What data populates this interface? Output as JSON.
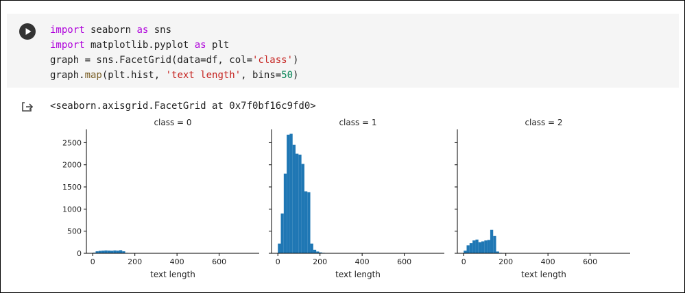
{
  "code_cell": {
    "lines": [
      [
        {
          "t": "import",
          "c": "kw"
        },
        {
          "t": " seaborn ",
          "c": ""
        },
        {
          "t": "as",
          "c": "kw"
        },
        {
          "t": " sns",
          "c": ""
        }
      ],
      [
        {
          "t": "import",
          "c": "kw"
        },
        {
          "t": " matplotlib.pyplot ",
          "c": ""
        },
        {
          "t": "as",
          "c": "kw"
        },
        {
          "t": " plt",
          "c": ""
        }
      ],
      [
        {
          "t": "graph = sns.FacetGrid(data=df, col=",
          "c": ""
        },
        {
          "t": "'class'",
          "c": "str"
        },
        {
          "t": ")",
          "c": ""
        }
      ],
      [
        {
          "t": "graph.",
          "c": ""
        },
        {
          "t": "map",
          "c": "fn"
        },
        {
          "t": "(plt.hist, ",
          "c": ""
        },
        {
          "t": "'text length'",
          "c": "str"
        },
        {
          "t": ", bins=",
          "c": ""
        },
        {
          "t": "50",
          "c": "num"
        },
        {
          "t": ")",
          "c": ""
        }
      ]
    ]
  },
  "output": {
    "text": "<seaborn.axisgrid.FacetGrid at 0x7f0bf16c9fd0>"
  },
  "chart_data": [
    {
      "type": "bar",
      "title": "class = 0",
      "xlabel": "text length",
      "ylabel": "",
      "xlim": [
        -30,
        790
      ],
      "ylim": [
        0,
        2800
      ],
      "xticks": [
        0,
        200,
        400,
        600
      ],
      "yticks": [
        0,
        500,
        1000,
        1500,
        2000,
        2500
      ],
      "bin_width": 14,
      "bins": [
        {
          "x": 7,
          "value": 15
        },
        {
          "x": 21,
          "value": 45
        },
        {
          "x": 35,
          "value": 55
        },
        {
          "x": 49,
          "value": 60
        },
        {
          "x": 63,
          "value": 65
        },
        {
          "x": 77,
          "value": 62
        },
        {
          "x": 91,
          "value": 58
        },
        {
          "x": 105,
          "value": 65
        },
        {
          "x": 119,
          "value": 60
        },
        {
          "x": 133,
          "value": 70
        },
        {
          "x": 147,
          "value": 45
        },
        {
          "x": 161,
          "value": 10
        }
      ]
    },
    {
      "type": "bar",
      "title": "class = 1",
      "xlabel": "text length",
      "ylabel": "",
      "xlim": [
        -30,
        790
      ],
      "ylim": [
        0,
        2800
      ],
      "xticks": [
        0,
        200,
        400,
        600
      ],
      "yticks": [
        0,
        500,
        1000,
        1500,
        2000,
        2500
      ],
      "bin_width": 14,
      "bins": [
        {
          "x": 7,
          "value": 220
        },
        {
          "x": 21,
          "value": 900
        },
        {
          "x": 35,
          "value": 1800
        },
        {
          "x": 49,
          "value": 2680
        },
        {
          "x": 63,
          "value": 2700
        },
        {
          "x": 77,
          "value": 2450
        },
        {
          "x": 91,
          "value": 2250
        },
        {
          "x": 105,
          "value": 2230
        },
        {
          "x": 119,
          "value": 2020
        },
        {
          "x": 133,
          "value": 1400
        },
        {
          "x": 147,
          "value": 1380
        },
        {
          "x": 161,
          "value": 220
        },
        {
          "x": 175,
          "value": 80
        },
        {
          "x": 189,
          "value": 40
        },
        {
          "x": 203,
          "value": 20
        },
        {
          "x": 217,
          "value": 10
        },
        {
          "x": 231,
          "value": 5
        }
      ]
    },
    {
      "type": "bar",
      "title": "class = 2",
      "xlabel": "text length",
      "ylabel": "",
      "xlim": [
        -30,
        790
      ],
      "ylim": [
        0,
        2800
      ],
      "xticks": [
        0,
        200,
        400,
        600
      ],
      "yticks": [
        0,
        500,
        1000,
        1500,
        2000,
        2500
      ],
      "bin_width": 14,
      "bins": [
        {
          "x": 7,
          "value": 60
        },
        {
          "x": 21,
          "value": 180
        },
        {
          "x": 35,
          "value": 230
        },
        {
          "x": 49,
          "value": 290
        },
        {
          "x": 63,
          "value": 310
        },
        {
          "x": 77,
          "value": 250
        },
        {
          "x": 91,
          "value": 270
        },
        {
          "x": 105,
          "value": 290
        },
        {
          "x": 119,
          "value": 300
        },
        {
          "x": 133,
          "value": 530
        },
        {
          "x": 147,
          "value": 390
        },
        {
          "x": 161,
          "value": 40
        },
        {
          "x": 175,
          "value": 10
        }
      ]
    }
  ],
  "colors": {
    "bar": "#1f77b4",
    "axis": "#000000",
    "code_bg": "#f5f5f5"
  }
}
